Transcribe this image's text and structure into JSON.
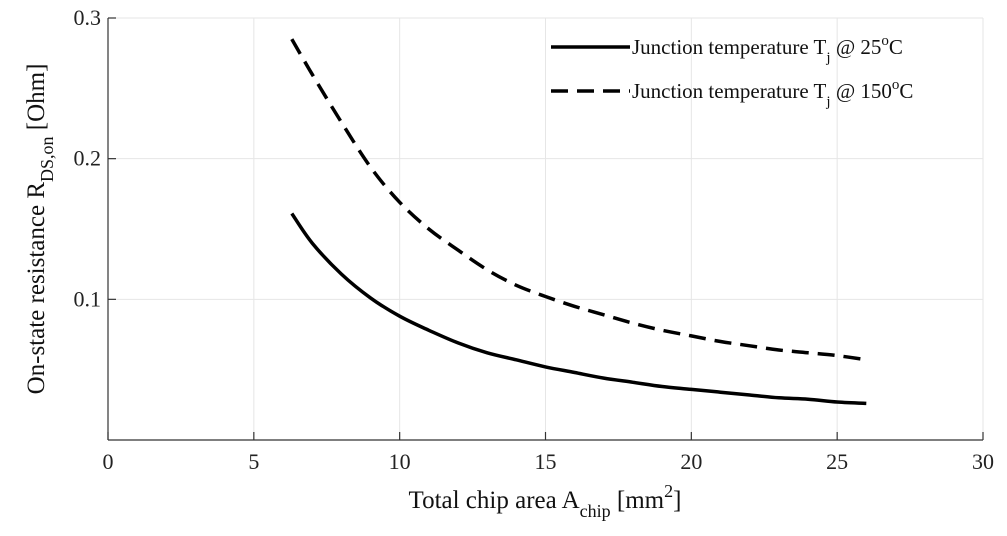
{
  "chart_data": {
    "type": "line",
    "xlabel": {
      "main": "Total chip area A",
      "sub": "chip",
      "after": " [mm",
      "sup": "2",
      "end": "]"
    },
    "ylabel": {
      "main": "On-state resistance R",
      "sub": "DS,on",
      "end": "  [Ohm]"
    },
    "xlim": [
      0,
      30
    ],
    "ylim": [
      0,
      0.3
    ],
    "xticks": [
      0,
      5,
      10,
      15,
      20,
      25,
      30
    ],
    "xtick_labels": [
      "0",
      "5",
      "10",
      "15",
      "20",
      "25",
      "30"
    ],
    "yticks": [
      0.1,
      0.2,
      0.3
    ],
    "ytick_labels": [
      "0.1",
      "0.2",
      "0.3"
    ],
    "grid": true,
    "legend_position": "top-right",
    "series": [
      {
        "name": "Junction temperature T_j @ 25°C",
        "legend": {
          "pre": "Junction temperature T",
          "sub": "j",
          "mid": " @ 25",
          "sup": "o",
          "end": "C"
        },
        "style": "solid",
        "color": "#000000",
        "x": [
          6.3,
          7,
          8,
          9,
          10,
          11,
          12,
          13,
          14,
          15,
          16,
          17,
          18,
          19,
          20,
          21,
          22,
          23,
          24,
          25,
          26
        ],
        "y": [
          0.161,
          0.14,
          0.118,
          0.101,
          0.088,
          0.078,
          0.069,
          0.062,
          0.057,
          0.052,
          0.048,
          0.044,
          0.041,
          0.038,
          0.036,
          0.034,
          0.032,
          0.03,
          0.029,
          0.027,
          0.026
        ]
      },
      {
        "name": "Junction temperature T_j @ 150°C",
        "legend": {
          "pre": "Junction temperature T",
          "sub": "j",
          "mid": " @ 150",
          "sup": "o",
          "end": "C"
        },
        "style": "dashed",
        "color": "#000000",
        "x": [
          6.3,
          7,
          8,
          9,
          10,
          11,
          12,
          13,
          14,
          15,
          16,
          17,
          18,
          19,
          20,
          21,
          22,
          23,
          24,
          25,
          26
        ],
        "y": [
          0.285,
          0.26,
          0.226,
          0.194,
          0.169,
          0.15,
          0.135,
          0.121,
          0.11,
          0.102,
          0.095,
          0.089,
          0.083,
          0.078,
          0.074,
          0.07,
          0.067,
          0.064,
          0.062,
          0.06,
          0.057
        ]
      }
    ]
  }
}
